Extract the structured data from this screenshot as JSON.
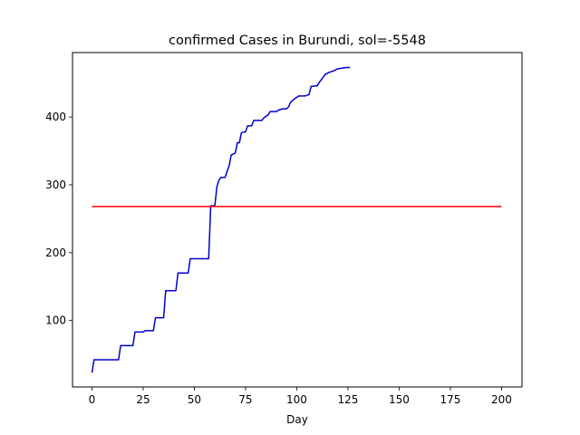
{
  "chart_data": {
    "type": "line",
    "title": "confirmed Cases in Burundi, sol=-5548",
    "xlabel": "Day",
    "ylabel": "",
    "xlim": [
      -9.5,
      210
    ],
    "ylim": [
      2,
      495
    ],
    "x_ticks": [
      0,
      25,
      50,
      75,
      100,
      125,
      150,
      175,
      200
    ],
    "y_ticks": [
      100,
      200,
      300,
      400
    ],
    "grid": false,
    "series": [
      {
        "color": "#0000cc",
        "points": [
          [
            0,
            23
          ],
          [
            1,
            42
          ],
          [
            13,
            42
          ],
          [
            14,
            63
          ],
          [
            20,
            63
          ],
          [
            21,
            83
          ],
          [
            25,
            83
          ],
          [
            26,
            85
          ],
          [
            30,
            85
          ],
          [
            31,
            104
          ],
          [
            35,
            104
          ],
          [
            36,
            144
          ],
          [
            41,
            144
          ],
          [
            42,
            170
          ],
          [
            47,
            170
          ],
          [
            48,
            191
          ],
          [
            57,
            191
          ],
          [
            58,
            269
          ],
          [
            60,
            269
          ],
          [
            61,
            297
          ],
          [
            62,
            307
          ],
          [
            63,
            311
          ],
          [
            65,
            311
          ],
          [
            66,
            320
          ],
          [
            67,
            328
          ],
          [
            68,
            344
          ],
          [
            70,
            347
          ],
          [
            71,
            362
          ],
          [
            72,
            362
          ],
          [
            73,
            377
          ],
          [
            75,
            378
          ],
          [
            76,
            387
          ],
          [
            78,
            387
          ],
          [
            79,
            395
          ],
          [
            83,
            395
          ],
          [
            84,
            399
          ],
          [
            86,
            403
          ],
          [
            87,
            408
          ],
          [
            90,
            408
          ],
          [
            91,
            410
          ],
          [
            93,
            412
          ],
          [
            95,
            412
          ],
          [
            96,
            415
          ],
          [
            97,
            422
          ],
          [
            99,
            427
          ],
          [
            101,
            431
          ],
          [
            104,
            431
          ],
          [
            106,
            433
          ],
          [
            107,
            445
          ],
          [
            110,
            446
          ],
          [
            111,
            451
          ],
          [
            112,
            455
          ],
          [
            114,
            463
          ],
          [
            116,
            466
          ],
          [
            118,
            468
          ],
          [
            120,
            471
          ],
          [
            122,
            472
          ],
          [
            124,
            473
          ],
          [
            126,
            473
          ]
        ]
      },
      {
        "color": "#ff0000",
        "points": [
          [
            0,
            268
          ],
          [
            200,
            268
          ]
        ]
      }
    ]
  }
}
